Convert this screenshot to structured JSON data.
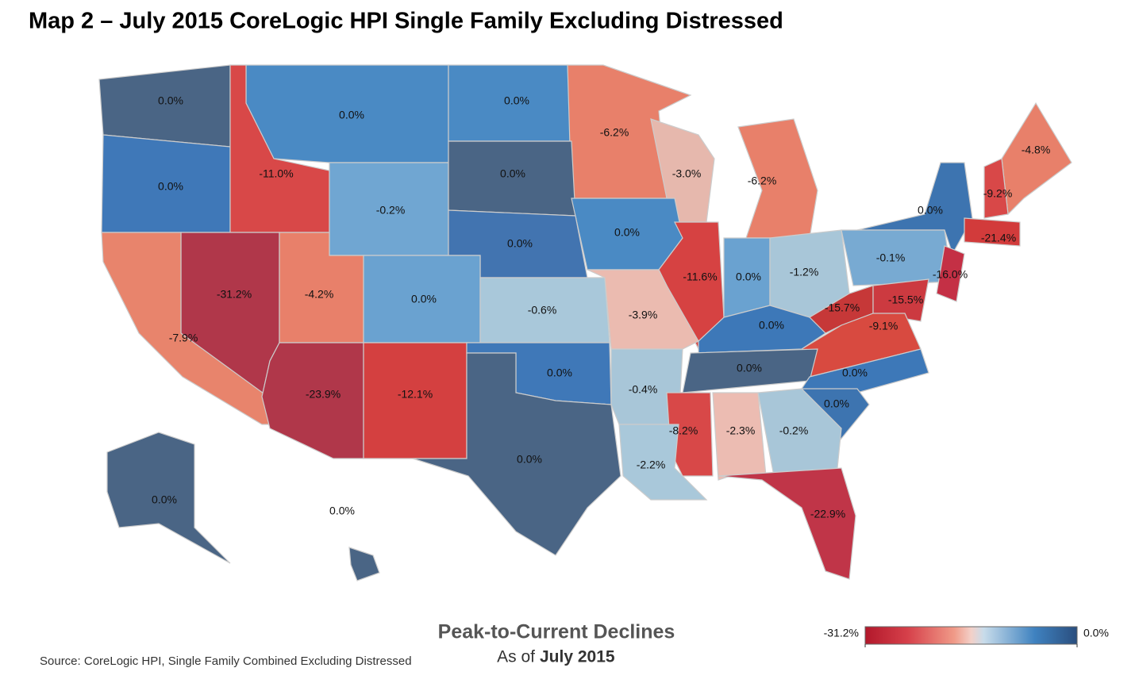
{
  "chart_data": {
    "type": "choropleth",
    "title": "Map 2 – July 2015 CoreLogic HPI Single Family Excluding Distressed",
    "legend_title": "Peak-to-Current Declines",
    "legend_subtitle": [
      "As of",
      "July 2015"
    ],
    "source": "Source: CoreLogic HPI, Single Family Combined Excluding Distressed",
    "values": [
      0.0,
      0.0,
      0.0,
      -6.2,
      -3.0,
      -6.2,
      -4.8,
      0.0,
      -11.0,
      -0.2,
      0.0,
      -9.2,
      0.0,
      -21.4,
      0.0,
      0.0,
      -31.2,
      -4.2,
      0.0,
      -11.6,
      0.0,
      -1.2,
      -0.1,
      -16.0,
      -0.6,
      -3.9,
      -15.7,
      -15.5,
      -9.1,
      0.0,
      -7.9,
      0.0,
      0.0,
      -23.9,
      -12.1,
      0.0,
      -0.4,
      0.0,
      -8.2,
      -2.3,
      -0.2,
      -2.2,
      0.0,
      -22.9,
      0.0,
      0.0
    ],
    "value_labels": [
      "0.0%",
      "0.0%",
      "0.0%",
      "-6.2%",
      "-3.0%",
      "-6.2%",
      "-4.8%",
      "0.0%",
      "-11.0%",
      "-0.2%",
      "0.0%",
      "-9.2%",
      "0.0%",
      "-21.4%",
      "0.0%",
      "0.0%",
      "-31.2%",
      "-4.2%",
      "0.0%",
      "-11.6%",
      "0.0%",
      "-1.2%",
      "-0.1%",
      "-16.0%",
      "-0.6%",
      "-3.9%",
      "-15.7%",
      "-15.5%",
      "-9.1%",
      "0.0%",
      "-7.9%",
      "0.0%",
      "0.0%",
      "-23.9%",
      "-12.1%",
      "0.0%",
      "-0.4%",
      "0.0%",
      "-8.2%",
      "-2.3%",
      "-0.2%",
      "-2.2%",
      "0.0%",
      "-22.9%",
      "0.0%",
      "0.0%"
    ],
    "colors": [
      "#4a6585",
      "#4a8ac4",
      "#4a8ac4",
      "#e8806a",
      "#e6b8ad",
      "#e8806a",
      "#e8806a",
      "#3f78b8",
      "#d84848",
      "#70a6d2",
      "#4a6585",
      "#d84848",
      "#3d74b0",
      "#d23b3b",
      "#4a8ac4",
      "#4274b0",
      "#b0374a",
      "#e8806a",
      "#6aa2d0",
      "#d64242",
      "#6aa2d0",
      "#a8c6d8",
      "#78aad2",
      "#c43045",
      "#a9c8da",
      "#ebbbb0",
      "#c63838",
      "#cc3a40",
      "#d84a40",
      "#3d78b8",
      "#e8846c",
      "#4a6585",
      "#3d78b8",
      "#b0374a",
      "#d44040",
      "#3f78b8",
      "#a8c6d8",
      "#3d74b0",
      "#d84848",
      "#ecbcb2",
      "#a8c6d8",
      "#a9c8da",
      "#4a6585",
      "#c03548",
      "#4a6585",
      "#4a6585"
    ],
    "colorlim": [
      -31.2,
      0.0
    ],
    "colorticks": [
      {
        "value": -31.2,
        "label": "-31.2%"
      },
      {
        "value": 0.0,
        "label": "0.0%"
      }
    ]
  }
}
